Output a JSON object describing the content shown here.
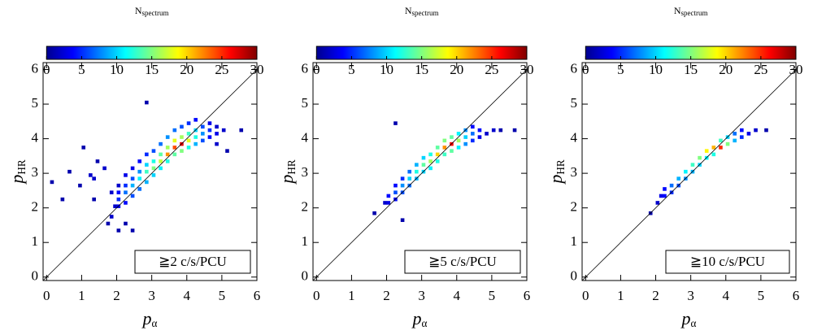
{
  "chart_data": [
    {
      "type": "heatmap",
      "colormap": "jet",
      "diagonal": true,
      "colorbar_label": [
        "N",
        "spectrum"
      ],
      "colorbar_lim": [
        0,
        30
      ],
      "colorbar_ticks": [
        0,
        5,
        10,
        15,
        20,
        25,
        30
      ],
      "xlabel": [
        "p",
        "α"
      ],
      "ylabel": [
        "p",
        "HR"
      ],
      "annotation": "≧2 c/s/PCU",
      "xlim": [
        -0.1,
        6.0
      ],
      "ylim": [
        -0.1,
        6.2
      ],
      "xticks": [
        0,
        1,
        2,
        3,
        4,
        5,
        6
      ],
      "yticks": [
        0,
        1,
        2,
        3,
        4,
        5,
        6
      ],
      "cells": [
        [
          0.1,
          2.7,
          1
        ],
        [
          0.4,
          2.2,
          1
        ],
        [
          0.6,
          3.0,
          1
        ],
        [
          0.9,
          2.6,
          1
        ],
        [
          1.0,
          3.7,
          1
        ],
        [
          1.2,
          2.9,
          2
        ],
        [
          1.3,
          2.8,
          2
        ],
        [
          1.3,
          2.2,
          1
        ],
        [
          1.4,
          3.3,
          1
        ],
        [
          1.6,
          3.1,
          2
        ],
        [
          1.7,
          1.5,
          1
        ],
        [
          1.8,
          1.7,
          2
        ],
        [
          2.0,
          1.3,
          1
        ],
        [
          2.2,
          1.5,
          1
        ],
        [
          2.4,
          1.3,
          1
        ],
        [
          2.8,
          5.0,
          1
        ],
        [
          5.0,
          4.2,
          2
        ],
        [
          5.5,
          4.2,
          1
        ],
        [
          5.1,
          3.6,
          1
        ],
        [
          1.8,
          2.4,
          2
        ],
        [
          1.9,
          2.0,
          2
        ],
        [
          2.0,
          2.0,
          3
        ],
        [
          2.0,
          2.2,
          5
        ],
        [
          2.0,
          2.4,
          4
        ],
        [
          2.0,
          2.6,
          2
        ],
        [
          2.2,
          2.1,
          4
        ],
        [
          2.2,
          2.4,
          7
        ],
        [
          2.2,
          2.6,
          5
        ],
        [
          2.2,
          2.9,
          3
        ],
        [
          2.4,
          2.3,
          6
        ],
        [
          2.4,
          2.6,
          9
        ],
        [
          2.4,
          2.8,
          6
        ],
        [
          2.4,
          3.1,
          3
        ],
        [
          2.6,
          2.5,
          7
        ],
        [
          2.6,
          2.8,
          11
        ],
        [
          2.6,
          3.0,
          8
        ],
        [
          2.6,
          3.3,
          4
        ],
        [
          2.8,
          2.7,
          9
        ],
        [
          2.8,
          3.0,
          13
        ],
        [
          2.8,
          3.2,
          10
        ],
        [
          2.8,
          3.5,
          5
        ],
        [
          3.0,
          2.9,
          10
        ],
        [
          3.0,
          3.1,
          15
        ],
        [
          3.0,
          3.3,
          12
        ],
        [
          3.0,
          3.6,
          6
        ],
        [
          3.2,
          3.1,
          11
        ],
        [
          3.2,
          3.3,
          17
        ],
        [
          3.2,
          3.5,
          14
        ],
        [
          3.2,
          3.8,
          7
        ],
        [
          3.4,
          3.3,
          12
        ],
        [
          3.4,
          3.5,
          22
        ],
        [
          3.4,
          3.7,
          16
        ],
        [
          3.4,
          4.0,
          8
        ],
        [
          3.6,
          3.5,
          14
        ],
        [
          3.6,
          3.7,
          24
        ],
        [
          3.6,
          3.9,
          18
        ],
        [
          3.6,
          4.2,
          7
        ],
        [
          3.8,
          3.6,
          15
        ],
        [
          3.8,
          3.8,
          27
        ],
        [
          3.8,
          4.0,
          16
        ],
        [
          3.8,
          4.3,
          6
        ],
        [
          4.0,
          3.7,
          12
        ],
        [
          4.0,
          3.9,
          18
        ],
        [
          4.0,
          4.1,
          13
        ],
        [
          4.0,
          4.4,
          5
        ],
        [
          4.2,
          3.8,
          9
        ],
        [
          4.2,
          4.0,
          12
        ],
        [
          4.2,
          4.2,
          10
        ],
        [
          4.2,
          4.5,
          4
        ],
        [
          4.4,
          3.9,
          6
        ],
        [
          4.4,
          4.1,
          8
        ],
        [
          4.4,
          4.3,
          6
        ],
        [
          4.6,
          4.0,
          4
        ],
        [
          4.6,
          4.2,
          5
        ],
        [
          4.6,
          4.4,
          3
        ],
        [
          4.8,
          4.1,
          3
        ],
        [
          4.8,
          4.3,
          2
        ],
        [
          4.8,
          3.8,
          2
        ]
      ]
    },
    {
      "type": "heatmap",
      "colormap": "jet",
      "diagonal": true,
      "colorbar_label": [
        "N",
        "spectrum"
      ],
      "colorbar_lim": [
        0,
        30
      ],
      "colorbar_ticks": [
        0,
        5,
        10,
        15,
        20,
        25,
        30
      ],
      "xlabel": [
        "p",
        "α"
      ],
      "ylabel": [
        "p",
        "HR"
      ],
      "annotation": "≧5 c/s/PCU",
      "xlim": [
        -0.1,
        6.0
      ],
      "ylim": [
        -0.1,
        6.2
      ],
      "xticks": [
        0,
        1,
        2,
        3,
        4,
        5,
        6
      ],
      "yticks": [
        0,
        1,
        2,
        3,
        4,
        5,
        6
      ],
      "cells": [
        [
          1.6,
          1.8,
          1
        ],
        [
          2.2,
          4.4,
          1
        ],
        [
          2.4,
          1.6,
          1
        ],
        [
          5.6,
          4.2,
          1
        ],
        [
          5.2,
          4.2,
          1
        ],
        [
          1.9,
          2.1,
          2
        ],
        [
          2.0,
          2.1,
          3
        ],
        [
          2.0,
          2.3,
          4
        ],
        [
          2.2,
          2.2,
          4
        ],
        [
          2.2,
          2.4,
          6
        ],
        [
          2.2,
          2.6,
          4
        ],
        [
          2.4,
          2.4,
          6
        ],
        [
          2.4,
          2.6,
          8
        ],
        [
          2.4,
          2.8,
          5
        ],
        [
          2.6,
          2.6,
          7
        ],
        [
          2.6,
          2.8,
          10
        ],
        [
          2.6,
          3.0,
          7
        ],
        [
          2.8,
          2.8,
          9
        ],
        [
          2.8,
          3.0,
          12
        ],
        [
          2.8,
          3.2,
          9
        ],
        [
          3.0,
          3.0,
          10
        ],
        [
          3.0,
          3.2,
          14
        ],
        [
          3.0,
          3.4,
          10
        ],
        [
          3.2,
          3.1,
          11
        ],
        [
          3.2,
          3.3,
          16
        ],
        [
          3.2,
          3.5,
          12
        ],
        [
          3.4,
          3.3,
          12
        ],
        [
          3.4,
          3.5,
          20
        ],
        [
          3.4,
          3.7,
          14
        ],
        [
          3.6,
          3.5,
          13
        ],
        [
          3.6,
          3.7,
          22
        ],
        [
          3.6,
          3.9,
          15
        ],
        [
          3.8,
          3.6,
          14
        ],
        [
          3.8,
          3.8,
          26
        ],
        [
          3.8,
          4.0,
          14
        ],
        [
          4.0,
          3.7,
          11
        ],
        [
          4.0,
          3.9,
          16
        ],
        [
          4.0,
          4.1,
          11
        ],
        [
          4.2,
          3.8,
          8
        ],
        [
          4.2,
          4.0,
          10
        ],
        [
          4.2,
          4.2,
          8
        ],
        [
          4.4,
          3.9,
          5
        ],
        [
          4.4,
          4.1,
          7
        ],
        [
          4.4,
          4.3,
          4
        ],
        [
          4.6,
          4.0,
          3
        ],
        [
          4.6,
          4.2,
          4
        ],
        [
          4.8,
          4.1,
          2
        ],
        [
          5.0,
          4.2,
          2
        ]
      ]
    },
    {
      "type": "heatmap",
      "colormap": "jet",
      "diagonal": true,
      "colorbar_label": [
        "N",
        "spectrum"
      ],
      "colorbar_lim": [
        0,
        30
      ],
      "colorbar_ticks": [
        0,
        5,
        10,
        15,
        20,
        25,
        30
      ],
      "xlabel": [
        "p",
        "α"
      ],
      "ylabel": [
        "p",
        "HR"
      ],
      "annotation": "≧10 c/s/PCU",
      "xlim": [
        -0.1,
        6.0
      ],
      "ylim": [
        -0.1,
        6.2
      ],
      "xticks": [
        0,
        1,
        2,
        3,
        4,
        5,
        6
      ],
      "yticks": [
        0,
        1,
        2,
        3,
        4,
        5,
        6
      ],
      "cells": [
        [
          1.8,
          1.8,
          1
        ],
        [
          5.1,
          4.2,
          1
        ],
        [
          2.0,
          2.1,
          2
        ],
        [
          2.1,
          2.3,
          3
        ],
        [
          2.2,
          2.3,
          4
        ],
        [
          2.2,
          2.5,
          4
        ],
        [
          2.4,
          2.4,
          5
        ],
        [
          2.4,
          2.6,
          7
        ],
        [
          2.6,
          2.6,
          6
        ],
        [
          2.6,
          2.8,
          9
        ],
        [
          2.8,
          2.8,
          8
        ],
        [
          2.8,
          3.0,
          11
        ],
        [
          3.0,
          3.0,
          9
        ],
        [
          3.0,
          3.2,
          13
        ],
        [
          3.2,
          3.2,
          10
        ],
        [
          3.2,
          3.4,
          15
        ],
        [
          3.4,
          3.4,
          11
        ],
        [
          3.4,
          3.6,
          19
        ],
        [
          3.6,
          3.5,
          12
        ],
        [
          3.6,
          3.7,
          21
        ],
        [
          3.8,
          3.7,
          25
        ],
        [
          3.8,
          3.9,
          13
        ],
        [
          4.0,
          3.8,
          15
        ],
        [
          4.0,
          4.0,
          10
        ],
        [
          4.2,
          3.9,
          9
        ],
        [
          4.2,
          4.1,
          7
        ],
        [
          4.4,
          4.0,
          5
        ],
        [
          4.4,
          4.2,
          4
        ],
        [
          4.6,
          4.1,
          3
        ],
        [
          4.8,
          4.2,
          2
        ]
      ]
    }
  ]
}
